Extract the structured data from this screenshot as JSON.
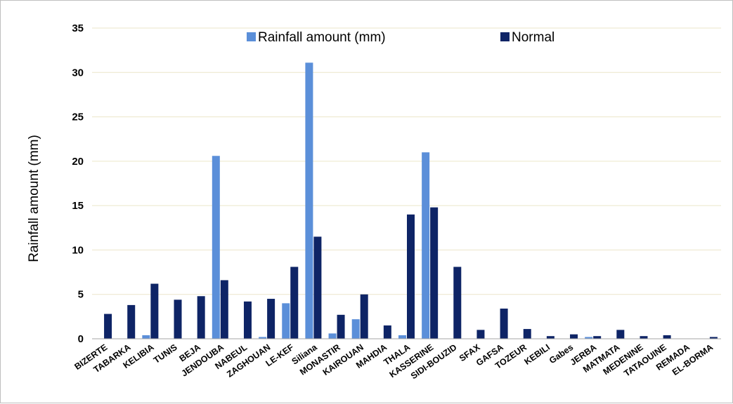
{
  "chart_data": {
    "type": "bar",
    "ylabel": "Rainfall amount (mm)",
    "xlabel": "",
    "ylim": [
      0,
      35
    ],
    "yticks": [
      0,
      5,
      10,
      15,
      20,
      25,
      30,
      35
    ],
    "grid": true,
    "legend_position": "top",
    "categories": [
      "BIZERTE",
      "TABARKA",
      "KELIBIA",
      "TUNIS",
      "BEJA",
      "JENDOUBA",
      "NABEUL",
      "ZAGHOUAN",
      "LE-KEF",
      "Siliana",
      "MONASTIR",
      "KAIROUAN",
      "MAHDIA",
      "THALA",
      "KASSERINE",
      "SIDI-BOUZID",
      "SFAX",
      "GAFSA",
      "TOZEUR",
      "KEBILI",
      "Gabes",
      "JERBA",
      "MATMATA",
      "MEDENINE",
      "TATAOUINE",
      "REMADA",
      "EL-BORMA"
    ],
    "series": [
      {
        "name": "Rainfall amount (mm)",
        "color": "#5b8fd9",
        "values": [
          0,
          0,
          0.4,
          0,
          0,
          20.6,
          0,
          0.2,
          4.0,
          31.1,
          0.6,
          2.2,
          0,
          0.4,
          21.0,
          0,
          0,
          0,
          0,
          0,
          0,
          0.2,
          0,
          0,
          0,
          0,
          0
        ]
      },
      {
        "name": "Normal",
        "color": "#0e2466",
        "values": [
          2.8,
          3.8,
          6.2,
          4.4,
          4.8,
          6.6,
          4.2,
          4.5,
          8.1,
          11.5,
          2.7,
          5.0,
          1.5,
          14.0,
          14.8,
          8.1,
          1.0,
          3.4,
          1.1,
          0.3,
          0.5,
          0.3,
          1.0,
          0.3,
          0.4,
          0,
          0.2
        ]
      }
    ]
  }
}
